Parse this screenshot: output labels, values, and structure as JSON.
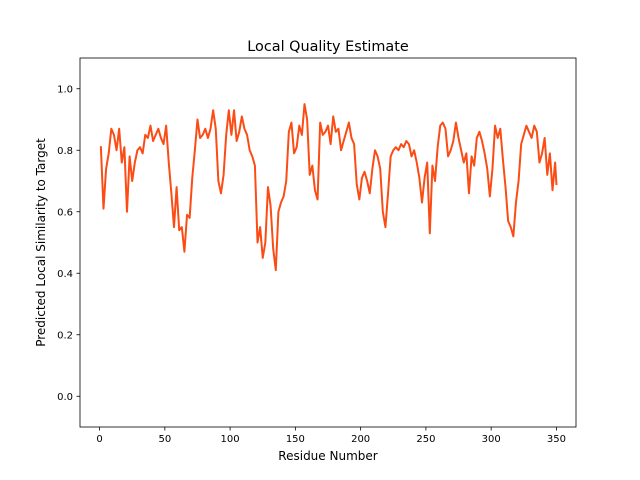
{
  "chart_data": {
    "type": "line",
    "title": "Local Quality Estimate",
    "xlabel": "Residue Number",
    "ylabel": "Predicted Local Similarity to Target",
    "xlim": [
      -15,
      365
    ],
    "ylim": [
      -0.1,
      1.1
    ],
    "xticks": [
      0,
      50,
      100,
      150,
      200,
      250,
      300,
      350
    ],
    "yticks": [
      0.0,
      0.2,
      0.4,
      0.6,
      0.8,
      1.0
    ],
    "ytick_labels": [
      "0.0",
      "0.2",
      "0.4",
      "0.6",
      "0.8",
      "1.0"
    ],
    "grid": false,
    "series": [
      {
        "color": "#fc4c15",
        "x": [
          1,
          3,
          5,
          7,
          9,
          11,
          13,
          15,
          17,
          19,
          21,
          23,
          25,
          27,
          29,
          31,
          33,
          35,
          37,
          39,
          41,
          43,
          45,
          47,
          49,
          51,
          53,
          55,
          57,
          59,
          61,
          63,
          65,
          67,
          69,
          71,
          73,
          75,
          77,
          79,
          81,
          83,
          85,
          87,
          89,
          91,
          93,
          95,
          97,
          99,
          101,
          103,
          105,
          107,
          109,
          111,
          113,
          115,
          117,
          119,
          121,
          123,
          125,
          127,
          129,
          131,
          133,
          135,
          137,
          139,
          141,
          143,
          145,
          147,
          149,
          151,
          153,
          155,
          157,
          159,
          161,
          163,
          165,
          167,
          169,
          171,
          173,
          175,
          177,
          179,
          181,
          183,
          185,
          187,
          189,
          191,
          193,
          195,
          197,
          199,
          201,
          203,
          205,
          207,
          209,
          211,
          213,
          215,
          217,
          219,
          221,
          223,
          225,
          227,
          229,
          231,
          233,
          235,
          237,
          239,
          241,
          243,
          245,
          247,
          249,
          251,
          253,
          255,
          257,
          259,
          261,
          263,
          265,
          267,
          269,
          271,
          273,
          275,
          277,
          279,
          281,
          283,
          285,
          287,
          289,
          291,
          293,
          295,
          297,
          299,
          301,
          303,
          305,
          307,
          309,
          311,
          313,
          315,
          317,
          319,
          321,
          323,
          325,
          327,
          329,
          331,
          333,
          335,
          337,
          339,
          341,
          343,
          345,
          347,
          349,
          350
        ],
        "y": [
          0.81,
          0.61,
          0.74,
          0.79,
          0.87,
          0.85,
          0.8,
          0.87,
          0.76,
          0.81,
          0.6,
          0.78,
          0.7,
          0.76,
          0.8,
          0.81,
          0.79,
          0.85,
          0.84,
          0.88,
          0.83,
          0.85,
          0.87,
          0.84,
          0.82,
          0.88,
          0.76,
          0.66,
          0.55,
          0.68,
          0.54,
          0.55,
          0.47,
          0.59,
          0.58,
          0.71,
          0.8,
          0.9,
          0.84,
          0.85,
          0.87,
          0.84,
          0.87,
          0.93,
          0.87,
          0.7,
          0.66,
          0.72,
          0.85,
          0.93,
          0.85,
          0.93,
          0.83,
          0.86,
          0.91,
          0.87,
          0.85,
          0.8,
          0.78,
          0.75,
          0.5,
          0.55,
          0.45,
          0.5,
          0.68,
          0.62,
          0.48,
          0.41,
          0.6,
          0.63,
          0.65,
          0.7,
          0.86,
          0.89,
          0.79,
          0.81,
          0.88,
          0.85,
          0.95,
          0.9,
          0.72,
          0.75,
          0.67,
          0.64,
          0.89,
          0.85,
          0.86,
          0.88,
          0.82,
          0.91,
          0.86,
          0.87,
          0.8,
          0.83,
          0.86,
          0.89,
          0.84,
          0.82,
          0.69,
          0.64,
          0.71,
          0.73,
          0.7,
          0.66,
          0.74,
          0.8,
          0.78,
          0.74,
          0.6,
          0.55,
          0.66,
          0.78,
          0.8,
          0.81,
          0.8,
          0.82,
          0.81,
          0.83,
          0.82,
          0.78,
          0.8,
          0.76,
          0.71,
          0.63,
          0.71,
          0.76,
          0.53,
          0.75,
          0.7,
          0.81,
          0.88,
          0.89,
          0.87,
          0.78,
          0.8,
          0.83,
          0.89,
          0.84,
          0.8,
          0.76,
          0.79,
          0.66,
          0.78,
          0.75,
          0.84,
          0.86,
          0.83,
          0.79,
          0.74,
          0.65,
          0.74,
          0.88,
          0.84,
          0.87,
          0.77,
          0.68,
          0.57,
          0.55,
          0.52,
          0.63,
          0.7,
          0.82,
          0.85,
          0.88,
          0.86,
          0.84,
          0.88,
          0.86,
          0.76,
          0.79,
          0.84,
          0.72,
          0.79,
          0.67,
          0.76,
          0.69
        ]
      }
    ]
  }
}
